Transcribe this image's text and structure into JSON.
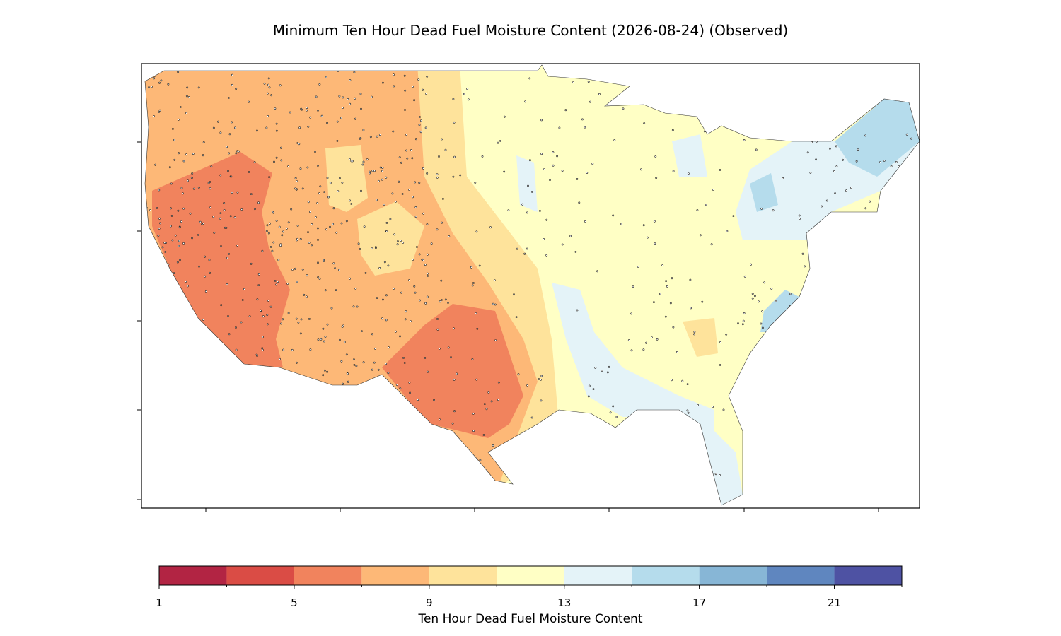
{
  "title": "Minimum Ten Hour Dead Fuel Moisture Content (2026-08-24) (Observed)",
  "colorbar": {
    "label": "Ten Hour Dead Fuel Moisture Content",
    "bounds": [
      1,
      3,
      5,
      7,
      9,
      11,
      13,
      15,
      17,
      19,
      21,
      23
    ],
    "colors": [
      "#b22443",
      "#da4c45",
      "#f1835d",
      "#fdb877",
      "#fee39b",
      "#ffffc5",
      "#e4f3f8",
      "#b5dcec",
      "#87b6d6",
      "#5f86bf",
      "#4e52a3"
    ],
    "ticks": [
      1,
      5,
      9,
      13,
      17,
      21
    ]
  }
}
